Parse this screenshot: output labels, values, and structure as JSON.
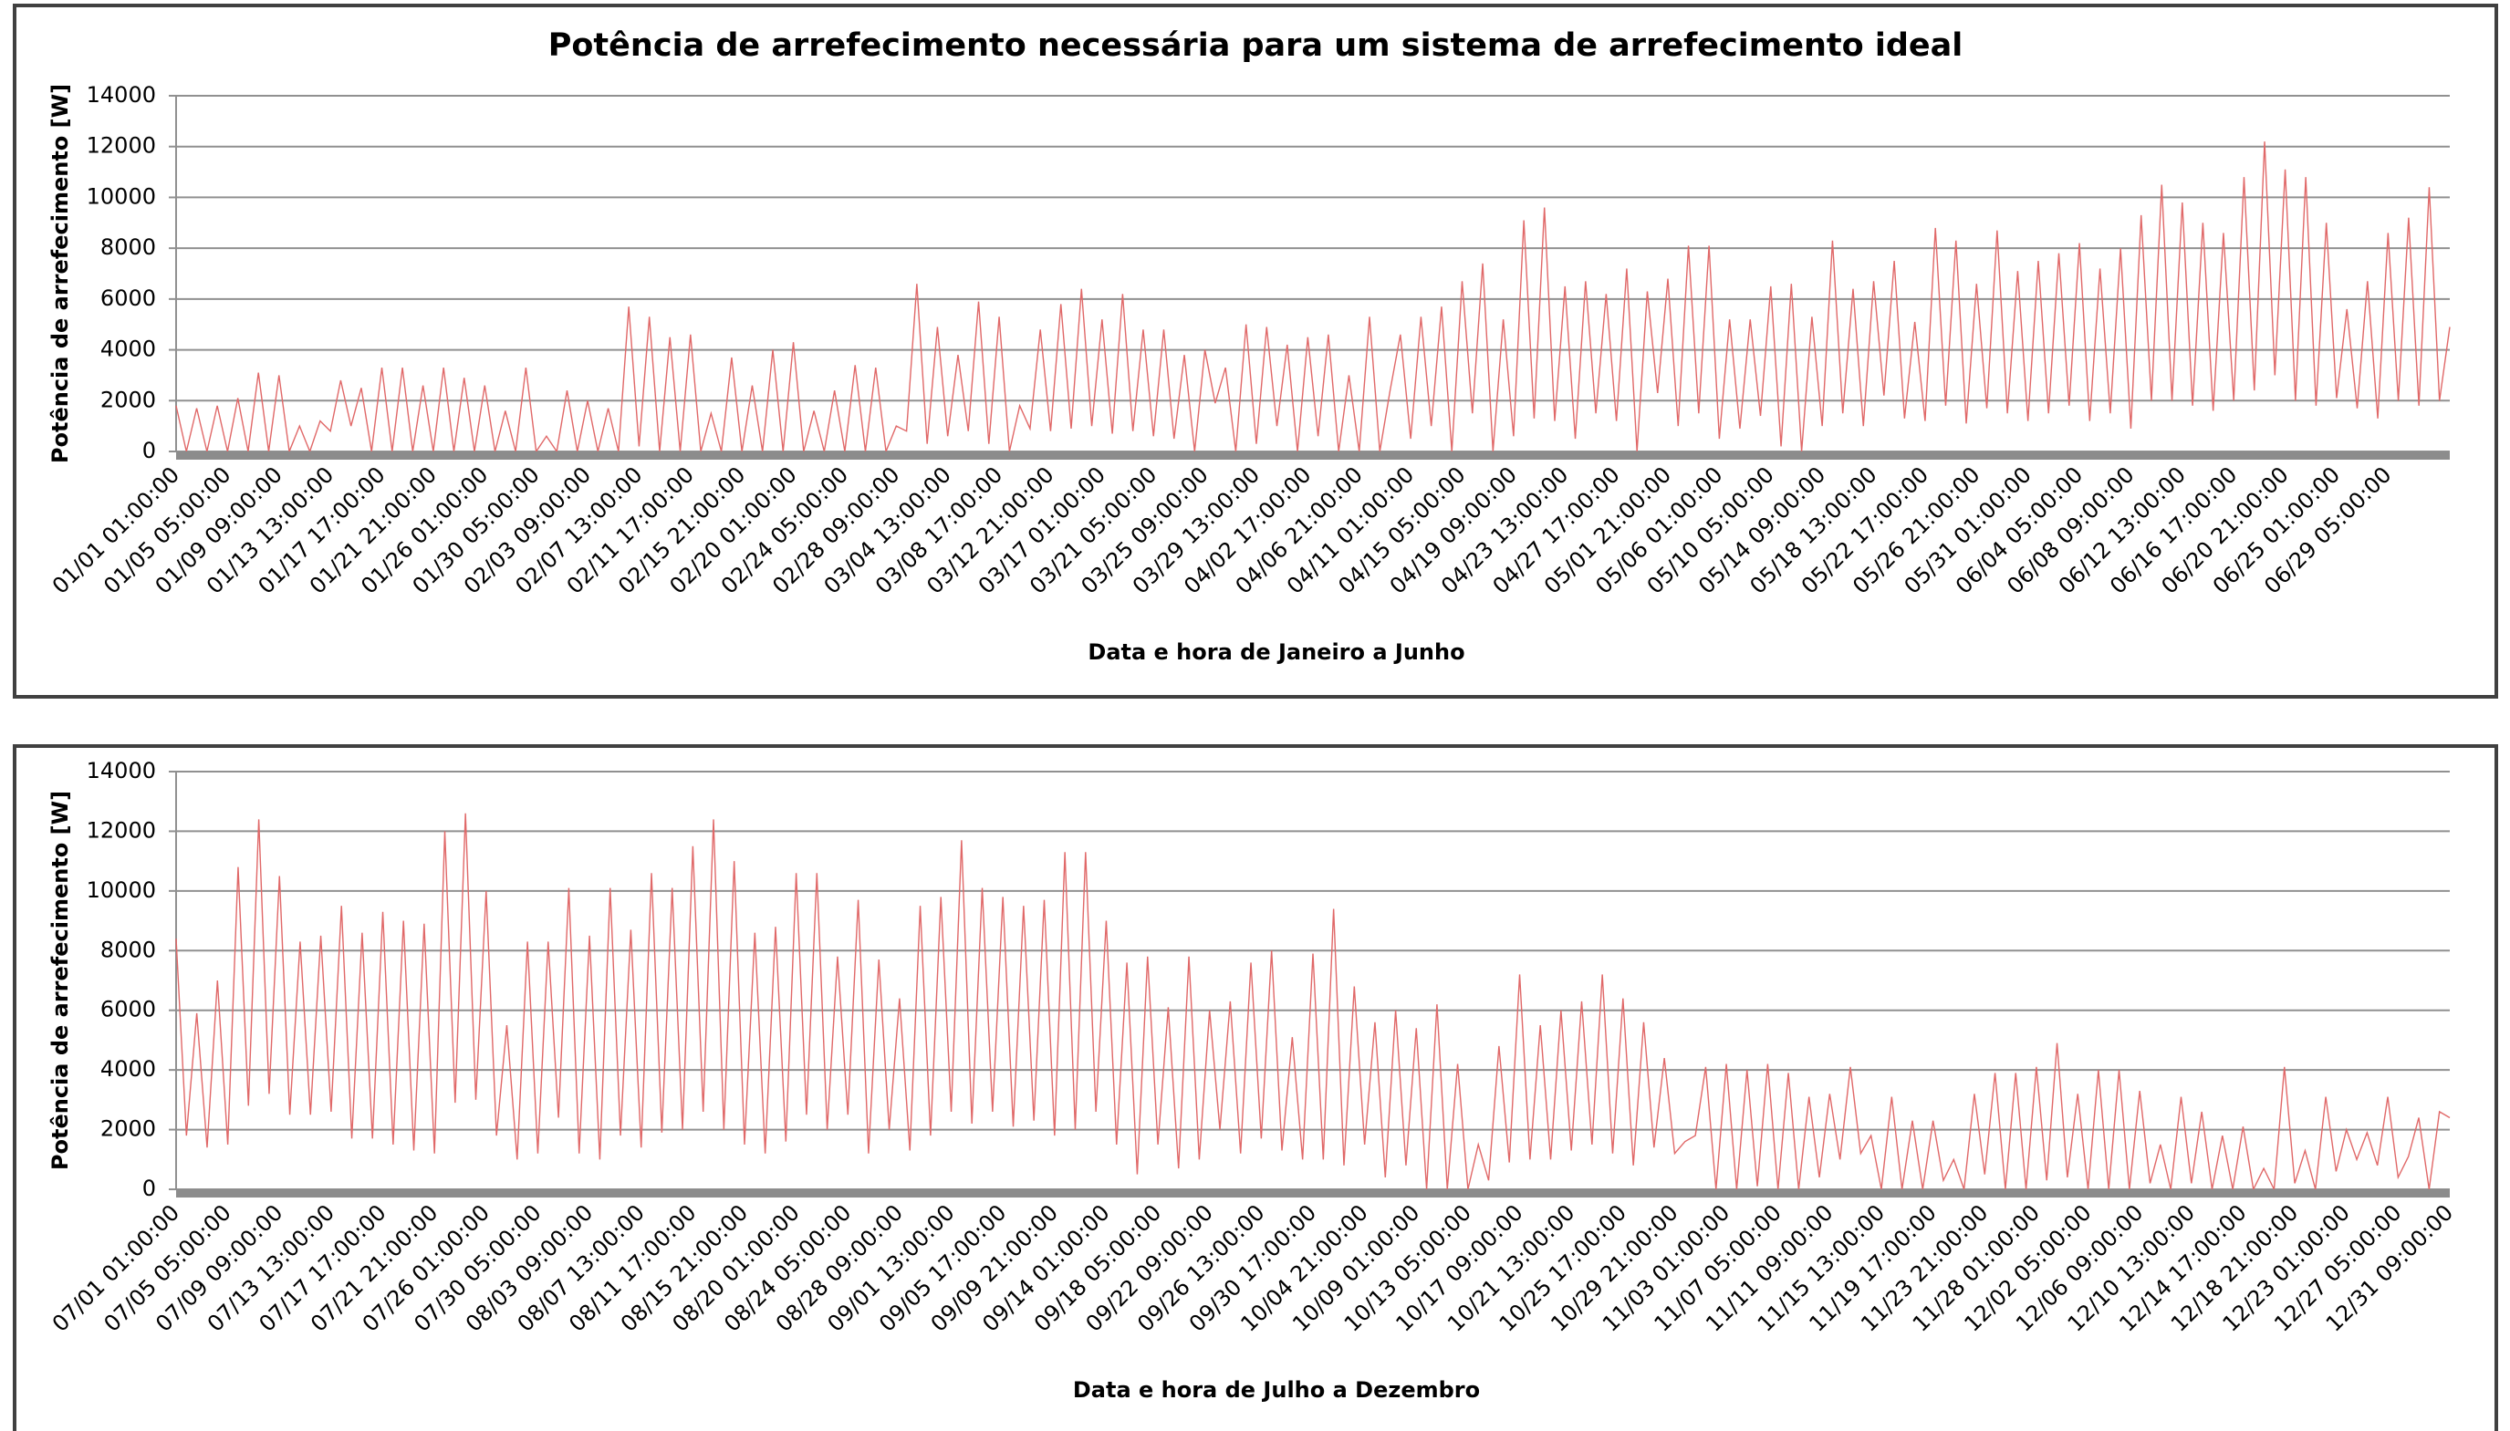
{
  "chart_data": [
    {
      "type": "line",
      "title": "Potência de arrefecimento necessária para um sistema de arrefecimento ideal",
      "y_label": "Potência de arrefecimento [W]",
      "x_label": "Data e hora de Janeiro a Junho",
      "color": "#e06868",
      "grid": true,
      "ylim": [
        0,
        14000
      ],
      "yticks": [
        0,
        2000,
        4000,
        6000,
        8000,
        10000,
        12000,
        14000
      ],
      "categories": [
        "01/01 01:00:00",
        null,
        null,
        null,
        null,
        "01/05 05:00:00",
        null,
        null,
        null,
        null,
        "01/09 09:00:00",
        null,
        null,
        null,
        null,
        "01/13 13:00:00",
        null,
        null,
        null,
        null,
        "01/17 17:00:00",
        null,
        null,
        null,
        null,
        "01/21 21:00:00",
        null,
        null,
        null,
        null,
        "01/26 01:00:00",
        null,
        null,
        null,
        null,
        "01/30 05:00:00",
        null,
        null,
        null,
        null,
        "02/03 09:00:00",
        null,
        null,
        null,
        null,
        "02/07 13:00:00",
        null,
        null,
        null,
        null,
        "02/11 17:00:00",
        null,
        null,
        null,
        null,
        "02/15 21:00:00",
        null,
        null,
        null,
        null,
        "02/20 01:00:00",
        null,
        null,
        null,
        null,
        "02/24 05:00:00",
        null,
        null,
        null,
        null,
        "02/28 09:00:00",
        null,
        null,
        null,
        null,
        "03/04 13:00:00",
        null,
        null,
        null,
        null,
        "03/08 17:00:00",
        null,
        null,
        null,
        null,
        "03/12 21:00:00",
        null,
        null,
        null,
        null,
        "03/17 01:00:00",
        null,
        null,
        null,
        null,
        "03/21 05:00:00",
        null,
        null,
        null,
        null,
        "03/25 09:00:00",
        null,
        null,
        null,
        null,
        "03/29 13:00:00",
        null,
        null,
        null,
        null,
        "04/02 17:00:00",
        null,
        null,
        null,
        null,
        "04/06 21:00:00",
        null,
        null,
        null,
        null,
        "04/11 01:00:00",
        null,
        null,
        null,
        null,
        "04/15 05:00:00",
        null,
        null,
        null,
        null,
        "04/19 09:00:00",
        null,
        null,
        null,
        null,
        "04/23 13:00:00",
        null,
        null,
        null,
        null,
        "04/27 17:00:00",
        null,
        null,
        null,
        null,
        "05/01 21:00:00",
        null,
        null,
        null,
        null,
        "05/06 01:00:00",
        null,
        null,
        null,
        null,
        "05/10 05:00:00",
        null,
        null,
        null,
        null,
        "05/14 09:00:00",
        null,
        null,
        null,
        null,
        "05/18 13:00:00",
        null,
        null,
        null,
        null,
        "05/22 17:00:00",
        null,
        null,
        null,
        null,
        "05/26 21:00:00",
        null,
        null,
        null,
        null,
        "05/31 01:00:00",
        null,
        null,
        null,
        null,
        "06/04 05:00:00",
        null,
        null,
        null,
        null,
        "06/08 09:00:00",
        null,
        null,
        null,
        null,
        "06/12 13:00:00",
        null,
        null,
        null,
        null,
        "06/16 17:00:00",
        null,
        null,
        null,
        null,
        "06/20 21:00:00",
        null,
        null,
        null,
        null,
        "06/25 01:00:00",
        null,
        null,
        null,
        null,
        "06/29 05:00:00",
        null,
        null,
        null,
        null,
        null,
        null
      ],
      "values": [
        1800,
        0,
        1700,
        0,
        1800,
        0,
        2100,
        0,
        3100,
        0,
        3000,
        0,
        1000,
        0,
        1200,
        800,
        2800,
        1000,
        2500,
        0,
        3300,
        0,
        3300,
        0,
        2600,
        0,
        3300,
        0,
        2900,
        0,
        2600,
        0,
        1600,
        0,
        3300,
        0,
        600,
        0,
        2400,
        0,
        2000,
        0,
        1700,
        0,
        5700,
        200,
        5300,
        0,
        4500,
        0,
        4600,
        0,
        1500,
        0,
        3700,
        0,
        2600,
        0,
        4000,
        0,
        4300,
        0,
        1600,
        0,
        2400,
        0,
        3400,
        0,
        3300,
        0,
        1000,
        800,
        6600,
        300,
        4900,
        600,
        3800,
        800,
        5900,
        300,
        5300,
        0,
        1800,
        900,
        4800,
        800,
        5800,
        900,
        6400,
        1000,
        5200,
        700,
        6200,
        800,
        4800,
        600,
        4800,
        500,
        3800,
        0,
        4000,
        1900,
        3300,
        0,
        5000,
        300,
        4900,
        1000,
        4200,
        0,
        4500,
        600,
        4600,
        0,
        3000,
        0,
        5300,
        0,
        2400,
        4600,
        500,
        5300,
        1000,
        5700,
        0,
        6700,
        1500,
        7400,
        0,
        5200,
        600,
        9100,
        1300,
        9600,
        1200,
        6500,
        500,
        6700,
        1500,
        6200,
        1200,
        7200,
        0,
        6300,
        2300,
        6800,
        1000,
        8100,
        1500,
        8100,
        500,
        5200,
        900,
        5200,
        1400,
        6500,
        200,
        6600,
        0,
        5300,
        1000,
        8300,
        1500,
        6400,
        1000,
        6700,
        2200,
        7500,
        1300,
        5100,
        1200,
        8800,
        1800,
        8300,
        1100,
        6600,
        1700,
        8700,
        1500,
        7100,
        1200,
        7500,
        1500,
        7800,
        1800,
        8200,
        1200,
        7200,
        1500,
        8000,
        900,
        9300,
        2000,
        10500,
        2000,
        9800,
        1800,
        9000,
        1600,
        8600,
        2000,
        10800,
        2400,
        12200,
        3000,
        11100,
        2000,
        10800,
        1800,
        9000,
        2100,
        5600,
        1700,
        6700,
        1300,
        8600,
        2000,
        9200,
        1800,
        10400,
        2000,
        4900
      ]
    },
    {
      "type": "line",
      "y_label": "Potência de arrefecimento [W]",
      "x_label": "Data e hora de Julho a Dezembro",
      "color": "#e06868",
      "grid": true,
      "ylim": [
        0,
        14000
      ],
      "yticks": [
        0,
        2000,
        4000,
        6000,
        8000,
        10000,
        12000,
        14000
      ],
      "categories": [
        "07/01 01:00:00",
        null,
        null,
        null,
        null,
        "07/05 05:00:00",
        null,
        null,
        null,
        null,
        "07/09 09:00:00",
        null,
        null,
        null,
        null,
        "07/13 13:00:00",
        null,
        null,
        null,
        null,
        "07/17 17:00:00",
        null,
        null,
        null,
        null,
        "07/21 21:00:00",
        null,
        null,
        null,
        null,
        "07/26 01:00:00",
        null,
        null,
        null,
        null,
        "07/30 05:00:00",
        null,
        null,
        null,
        null,
        "08/03 09:00:00",
        null,
        null,
        null,
        null,
        "08/07 13:00:00",
        null,
        null,
        null,
        null,
        "08/11 17:00:00",
        null,
        null,
        null,
        null,
        "08/15 21:00:00",
        null,
        null,
        null,
        null,
        "08/20 01:00:00",
        null,
        null,
        null,
        null,
        "08/24 05:00:00",
        null,
        null,
        null,
        null,
        "08/28 09:00:00",
        null,
        null,
        null,
        null,
        "09/01 13:00:00",
        null,
        null,
        null,
        null,
        "09/05 17:00:00",
        null,
        null,
        null,
        null,
        "09/09 21:00:00",
        null,
        null,
        null,
        null,
        "09/14 01:00:00",
        null,
        null,
        null,
        null,
        "09/18 05:00:00",
        null,
        null,
        null,
        null,
        "09/22 09:00:00",
        null,
        null,
        null,
        null,
        "09/26 13:00:00",
        null,
        null,
        null,
        null,
        "09/30 17:00:00",
        null,
        null,
        null,
        null,
        "10/04 21:00:00",
        null,
        null,
        null,
        null,
        "10/09 01:00:00",
        null,
        null,
        null,
        null,
        "10/13 05:00:00",
        null,
        null,
        null,
        null,
        "10/17 09:00:00",
        null,
        null,
        null,
        null,
        "10/21 13:00:00",
        null,
        null,
        null,
        null,
        "10/25 17:00:00",
        null,
        null,
        null,
        null,
        "10/29 21:00:00",
        null,
        null,
        null,
        null,
        "11/03 01:00:00",
        null,
        null,
        null,
        null,
        "11/07 05:00:00",
        null,
        null,
        null,
        null,
        "11/11 09:00:00",
        null,
        null,
        null,
        null,
        "11/15 13:00:00",
        null,
        null,
        null,
        null,
        "11/19 17:00:00",
        null,
        null,
        null,
        null,
        "11/23 21:00:00",
        null,
        null,
        null,
        null,
        "11/28 01:00:00",
        null,
        null,
        null,
        null,
        "12/02 05:00:00",
        null,
        null,
        null,
        null,
        "12/06 09:00:00",
        null,
        null,
        null,
        null,
        "12/10 13:00:00",
        null,
        null,
        null,
        null,
        "12/14 17:00:00",
        null,
        null,
        null,
        null,
        "12/18 21:00:00",
        null,
        null,
        null,
        null,
        "12/23 01:00:00",
        null,
        null,
        null,
        null,
        "12/27 05:00:00",
        null,
        null,
        null,
        null,
        "12/31 09:00:00"
      ],
      "values": [
        8400,
        1800,
        5900,
        1400,
        7000,
        1500,
        10800,
        2800,
        12400,
        3200,
        10500,
        2500,
        8300,
        2500,
        8500,
        2600,
        9500,
        1700,
        8600,
        1700,
        9300,
        1500,
        9000,
        1300,
        8900,
        1200,
        12000,
        2900,
        12600,
        3000,
        10000,
        1800,
        5500,
        1000,
        8300,
        1200,
        8300,
        2400,
        10100,
        1200,
        8500,
        1000,
        10100,
        1800,
        8700,
        1400,
        10600,
        1900,
        10100,
        2000,
        11500,
        2600,
        12400,
        2000,
        11000,
        1500,
        8600,
        1200,
        8800,
        1600,
        10600,
        2500,
        10600,
        2000,
        7800,
        2500,
        9700,
        1200,
        7700,
        2000,
        6400,
        1300,
        9500,
        1800,
        9800,
        2600,
        11700,
        2200,
        10100,
        2600,
        9800,
        2100,
        9500,
        2300,
        9700,
        1800,
        11300,
        2000,
        11300,
        2600,
        9000,
        1500,
        7600,
        500,
        7800,
        1500,
        6100,
        700,
        7800,
        1000,
        6000,
        2000,
        6300,
        1200,
        7600,
        1700,
        8000,
        1300,
        5100,
        1000,
        7900,
        1000,
        9400,
        800,
        6800,
        1500,
        5600,
        400,
        6000,
        800,
        5400,
        0,
        6200,
        0,
        4200,
        0,
        1500,
        300,
        4800,
        900,
        7200,
        1000,
        5500,
        1000,
        6000,
        1300,
        6300,
        1500,
        7200,
        1200,
        6400,
        800,
        5600,
        1400,
        4400,
        1200,
        1600,
        1800,
        4100,
        0,
        4200,
        0,
        4000,
        100,
        4200,
        0,
        3900,
        0,
        3100,
        400,
        3200,
        1000,
        4100,
        1200,
        1800,
        0,
        3100,
        0,
        2300,
        0,
        2300,
        300,
        1000,
        0,
        3200,
        500,
        3900,
        0,
        3900,
        0,
        4100,
        300,
        4900,
        400,
        3200,
        0,
        4000,
        0,
        4000,
        0,
        3300,
        200,
        1500,
        0,
        3100,
        200,
        2600,
        0,
        1800,
        0,
        2100,
        0,
        700,
        0,
        4100,
        200,
        1300,
        0,
        3100,
        600,
        2000,
        1000,
        1900,
        800,
        3100,
        400,
        1100,
        2400,
        0,
        2600,
        2400
      ]
    }
  ]
}
